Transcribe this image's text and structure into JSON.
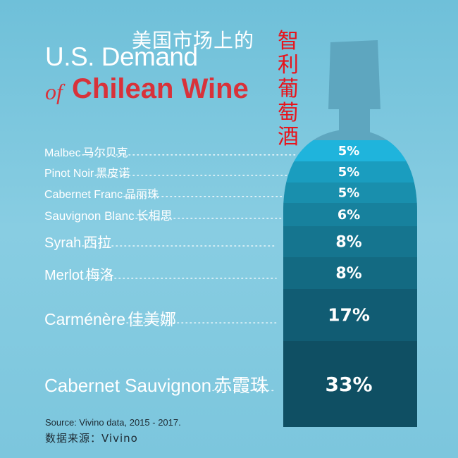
{
  "title": {
    "cn_top": "美国市场上的",
    "cn_side": "智利葡萄酒",
    "line1": "U.S. Demand",
    "of": "of",
    "line2": "Chilean Wine"
  },
  "chart_data": {
    "type": "bar",
    "style": "stacked bottle",
    "categories": [
      "Malbec",
      "Pinot Noir",
      "Cabernet Franc",
      "Sauvignon Blanc",
      "Syrah",
      "Merlot",
      "Carménère",
      "Cabernet Sauvignon"
    ],
    "categories_cn": [
      "马尔贝克",
      "黑皮诺",
      "品丽珠",
      "长相思",
      "西拉",
      "梅洛",
      "佳美娜",
      "赤霞珠"
    ],
    "values": [
      5,
      5,
      5,
      6,
      8,
      8,
      17,
      33
    ],
    "value_labels": [
      "5%",
      "5%",
      "5%",
      "6%",
      "8%",
      "8%",
      "17%",
      "33%"
    ],
    "colors": [
      "#1fb4dc",
      "#1a9dbf",
      "#198fad",
      "#17819d",
      "#15758f",
      "#136a82",
      "#115c73",
      "#0f4f63"
    ]
  },
  "colors": {
    "background": "#7cc6dd",
    "bottle": "#5ea6bf",
    "title_red": "#d8323a",
    "cn_red": "#e8141c"
  },
  "source": {
    "en": "Source: Vivino data, 2015 - 2017.",
    "cn": "数据来源：Vivino"
  }
}
